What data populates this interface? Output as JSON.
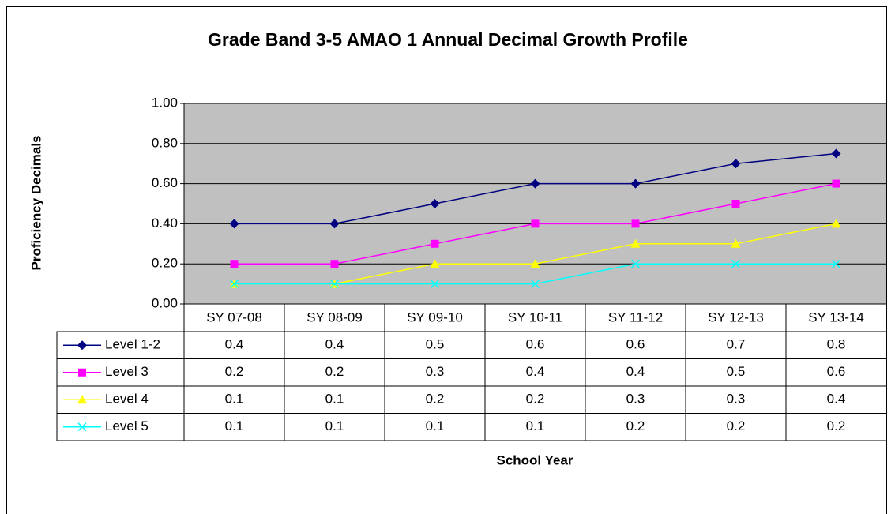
{
  "chart_data": {
    "type": "line",
    "title": "Grade Band 3-5 AMAO 1 Annual Decimal Growth Profile",
    "x_label": "School Year",
    "y_label": "Proficiency Decimals",
    "categories": [
      "SY 07-08",
      "SY 08-09",
      "SY 09-10",
      "SY 10-11",
      "SY 11-12",
      "SY 12-13",
      "SY 13-14"
    ],
    "series": [
      {
        "name": "Level 1-2",
        "color": "#000080",
        "marker": "diamond",
        "values": [
          0.4,
          0.4,
          0.5,
          0.6,
          0.6,
          0.7,
          0.75
        ],
        "value_labels": [
          "0.4",
          "0.4",
          "0.5",
          "0.6",
          "0.6",
          "0.7",
          "0.8"
        ]
      },
      {
        "name": "Level 3",
        "color": "#ff00ff",
        "marker": "square",
        "values": [
          0.2,
          0.2,
          0.3,
          0.4,
          0.4,
          0.5,
          0.6
        ]
      },
      {
        "name": "Level 4",
        "color": "#ffff00",
        "marker": "triangle",
        "values": [
          0.1,
          0.1,
          0.2,
          0.2,
          0.3,
          0.3,
          0.4
        ]
      },
      {
        "name": "Level 5",
        "color": "#00ffff",
        "marker": "x",
        "values": [
          0.1,
          0.1,
          0.1,
          0.1,
          0.2,
          0.2,
          0.2
        ]
      }
    ],
    "ylim": [
      0,
      1
    ],
    "yticks": [
      {
        "value": 0,
        "label": "0.00"
      },
      {
        "value": 0.2,
        "label": "0.20"
      },
      {
        "value": 0.4,
        "label": "0.40"
      },
      {
        "value": 0.6,
        "label": "0.60"
      },
      {
        "value": 0.8,
        "label": "0.80"
      },
      {
        "value": 1,
        "label": "1.00"
      }
    ],
    "grid": true,
    "plot_background": "#c0c0c0"
  }
}
